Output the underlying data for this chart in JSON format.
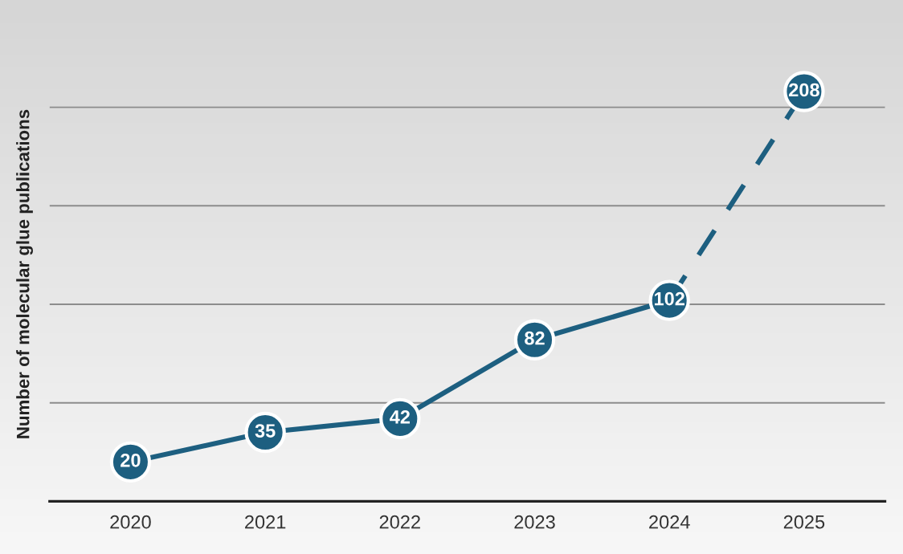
{
  "chart_data": {
    "type": "line",
    "ylabel": "Number of molecular glue publications",
    "categories": [
      "2020",
      "2021",
      "2022",
      "2023",
      "2024",
      "2025"
    ],
    "series": [
      {
        "color": "#1d5f80",
        "line_style": "solid",
        "values": [
          20,
          35,
          42,
          82,
          102,
          null
        ],
        "value_labels": [
          "20",
          "35",
          "42",
          "82",
          "102",
          null
        ]
      },
      {
        "color": "#1d5f80",
        "line_style": "dashed",
        "values": [
          null,
          null,
          null,
          null,
          102,
          208
        ],
        "value_labels": [
          null,
          null,
          null,
          null,
          null,
          "208"
        ]
      }
    ],
    "yticks": [
      {
        "value": 0,
        "label": null
      },
      {
        "value": 50,
        "label": null
      },
      {
        "value": 100,
        "label": null
      },
      {
        "value": 150,
        "label": null
      },
      {
        "value": 200,
        "label": null
      }
    ],
    "grid": "y",
    "marker": "circle",
    "tick_labels": "x"
  }
}
